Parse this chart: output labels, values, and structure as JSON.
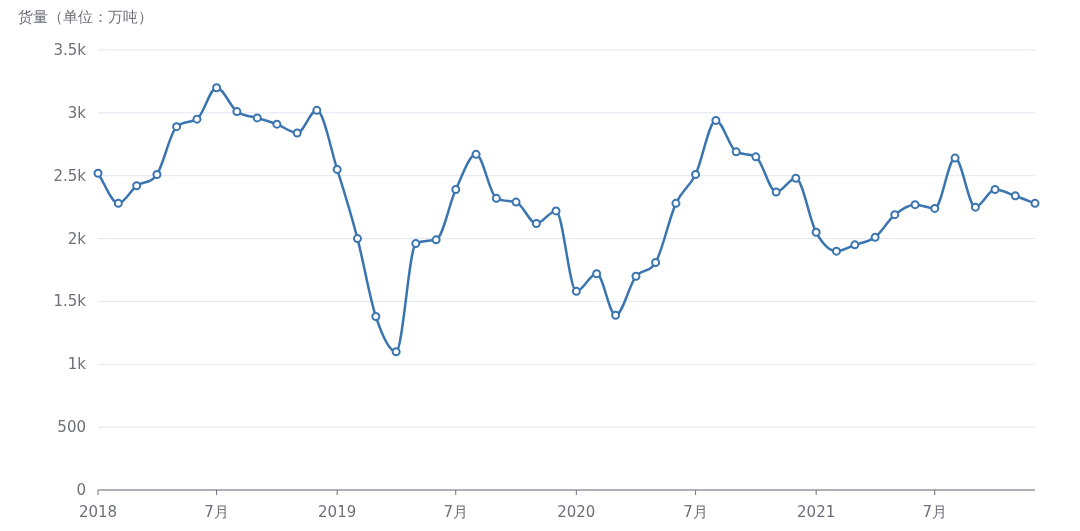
{
  "chart_data": {
    "type": "line",
    "ylabel": "货量（单位：万吨）",
    "x": [
      "2018-01",
      "2018-02",
      "2018-03",
      "2018-04",
      "2018-05",
      "2018-06",
      "2018-07",
      "2018-08",
      "2018-09",
      "2018-10",
      "2018-11",
      "2018-12",
      "2019-01",
      "2019-02",
      "2019-03",
      "2019-04",
      "2019-05",
      "2019-06",
      "2019-07",
      "2019-08",
      "2019-09",
      "2019-10",
      "2019-11",
      "2019-12",
      "2020-01",
      "2020-02",
      "2020-03",
      "2020-04",
      "2020-05",
      "2020-06",
      "2020-07",
      "2020-08",
      "2020-09",
      "2020-10",
      "2020-11",
      "2020-12",
      "2021-01",
      "2021-02",
      "2021-03",
      "2021-04",
      "2021-05",
      "2021-06",
      "2021-07",
      "2021-08",
      "2021-09",
      "2021-10",
      "2021-11",
      "2021-12"
    ],
    "series": [
      {
        "color": "#3b75af",
        "values": [
          2520,
          2280,
          2420,
          2510,
          2890,
          2950,
          3200,
          3010,
          2960,
          2910,
          2840,
          3020,
          2550,
          2000,
          1380,
          1100,
          1960,
          1990,
          2390,
          2670,
          2320,
          2290,
          2120,
          2220,
          1580,
          1720,
          1390,
          1700,
          1810,
          2280,
          2510,
          2940,
          2690,
          2650,
          2370,
          2480,
          2050,
          1900,
          1950,
          2010,
          2190,
          2270,
          2240,
          2640,
          2250,
          2390,
          2340,
          2280
        ]
      }
    ],
    "xlim": [
      "2018-01",
      "2021-12"
    ],
    "xticks": [
      {
        "value": "2018-01",
        "label": "2018"
      },
      {
        "value": "2018-07",
        "label": "7月"
      },
      {
        "value": "2019-01",
        "label": "2019"
      },
      {
        "value": "2019-07",
        "label": "7月"
      },
      {
        "value": "2020-01",
        "label": "2020"
      },
      {
        "value": "2020-07",
        "label": "7月"
      },
      {
        "value": "2021-01",
        "label": "2021"
      },
      {
        "value": "2021-07",
        "label": "7月"
      }
    ],
    "ylim": [
      0,
      3500
    ],
    "yticks": [
      0,
      500,
      {
        "value": 1000,
        "label": "1k"
      },
      {
        "value": 1500,
        "label": "1.5k"
      },
      {
        "value": 2000,
        "label": "2k"
      },
      {
        "value": 2500,
        "label": "2.5k"
      },
      {
        "value": 3000,
        "label": "3k"
      },
      {
        "value": 3500,
        "label": "3.5k"
      }
    ],
    "grid": "y",
    "marker": "circle",
    "line_style": "solid"
  }
}
